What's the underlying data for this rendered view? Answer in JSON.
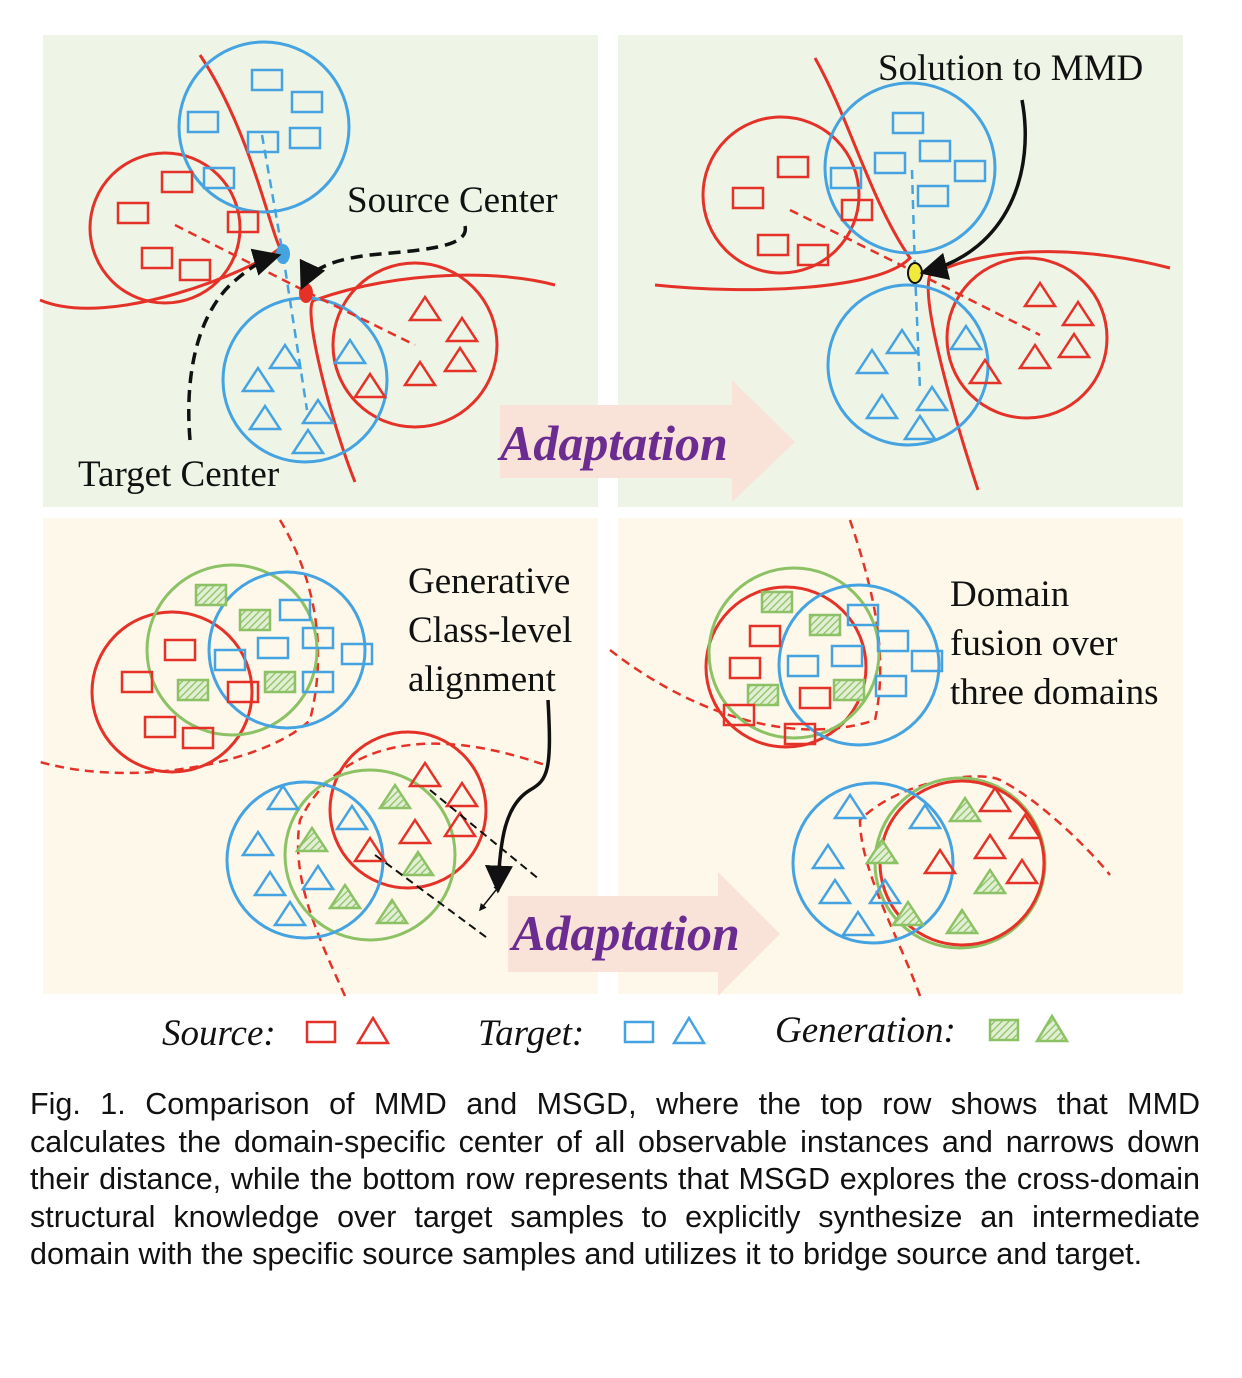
{
  "annotations": {
    "source_center": "Source Center",
    "target_center": "Target Center",
    "solution_mmd": "Solution to MMD",
    "generative_line1": "Generative",
    "generative_line2": "Class-level",
    "generative_line3": "alignment",
    "fusion_line1": "Domain",
    "fusion_line2": "fusion over",
    "fusion_line3": "three domains"
  },
  "arrows": {
    "top_label": "Adaptation",
    "bottom_label": "Adaptation"
  },
  "legend": {
    "source_label": "Source:",
    "target_label": "Target:",
    "generation_label": "Generation:"
  },
  "caption": "Fig. 1. Comparison of MMD and MSGD, where the top row shows that MMD calculates the domain-specific center of all observable instances and narrows down their distance, while the bottom row represents that MSGD explores the cross-domain structural knowledge over target samples to explicitly synthesize an intermediate domain with the specific source samples and utilizes it to bridge source and target.",
  "colors": {
    "source": "#e53228",
    "target": "#44a3e0",
    "generation": "#8cc265",
    "top_panel_bg": "#eef4e6",
    "bottom_panel_bg": "#fdf8e9",
    "arrow_fill": "#f9e2d8",
    "adaptation_text": "#6a2c91",
    "solution_point": "#f2ea3a"
  }
}
